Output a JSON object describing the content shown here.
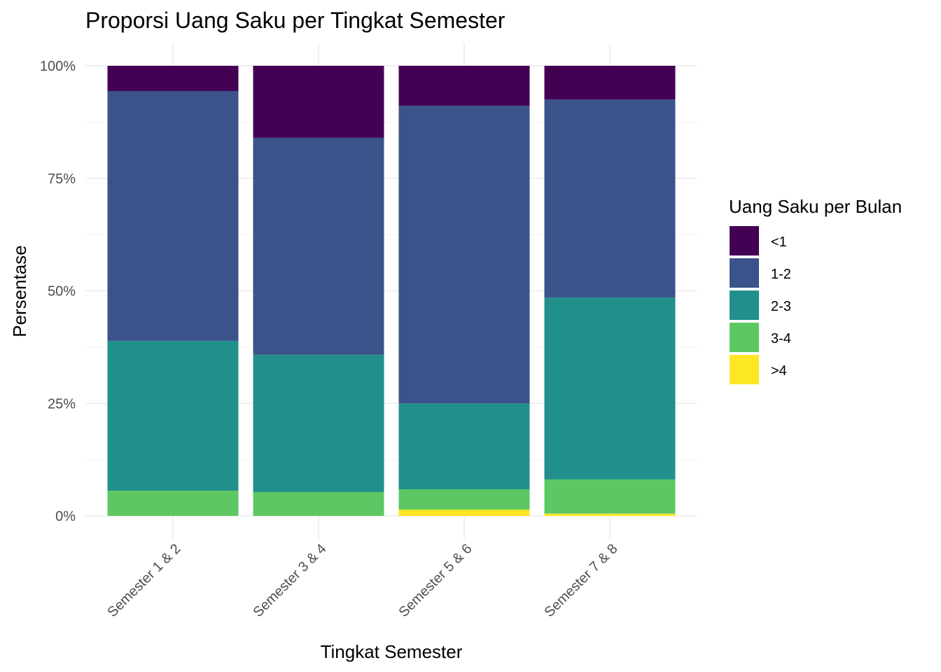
{
  "chart_data": {
    "type": "bar",
    "stacked": "percent",
    "title": "Proporsi Uang Saku per Tingkat Semester",
    "xlabel": "Tingkat Semester",
    "ylabel": "Persentase",
    "ylim": [
      0,
      100
    ],
    "yticks": [
      "0%",
      "25%",
      "50%",
      "75%",
      "100%"
    ],
    "ytick_values": [
      0,
      25,
      50,
      75,
      100
    ],
    "grid": true,
    "categories": [
      "Semester 1 & 2",
      "Semester 3 & 4",
      "Semester 5 & 6",
      "Semester 7 & 8"
    ],
    "legend": {
      "title": "Uang Saku per Bulan",
      "placement": "right"
    },
    "series": [
      {
        "name": "<1",
        "color": "#440154",
        "values": [
          5.6,
          16.0,
          8.9,
          7.5
        ]
      },
      {
        "name": "1-2",
        "color": "#3B528B",
        "values": [
          55.5,
          48.2,
          66.1,
          44.0
        ]
      },
      {
        "name": "2-3",
        "color": "#21908C",
        "values": [
          33.3,
          30.5,
          19.1,
          40.4
        ]
      },
      {
        "name": "3-4",
        "color": "#5DC863",
        "values": [
          5.6,
          5.3,
          4.5,
          7.6
        ]
      },
      {
        "name": ">4",
        "color": "#FDE725",
        "values": [
          0,
          0,
          1.4,
          0.5
        ]
      }
    ]
  }
}
